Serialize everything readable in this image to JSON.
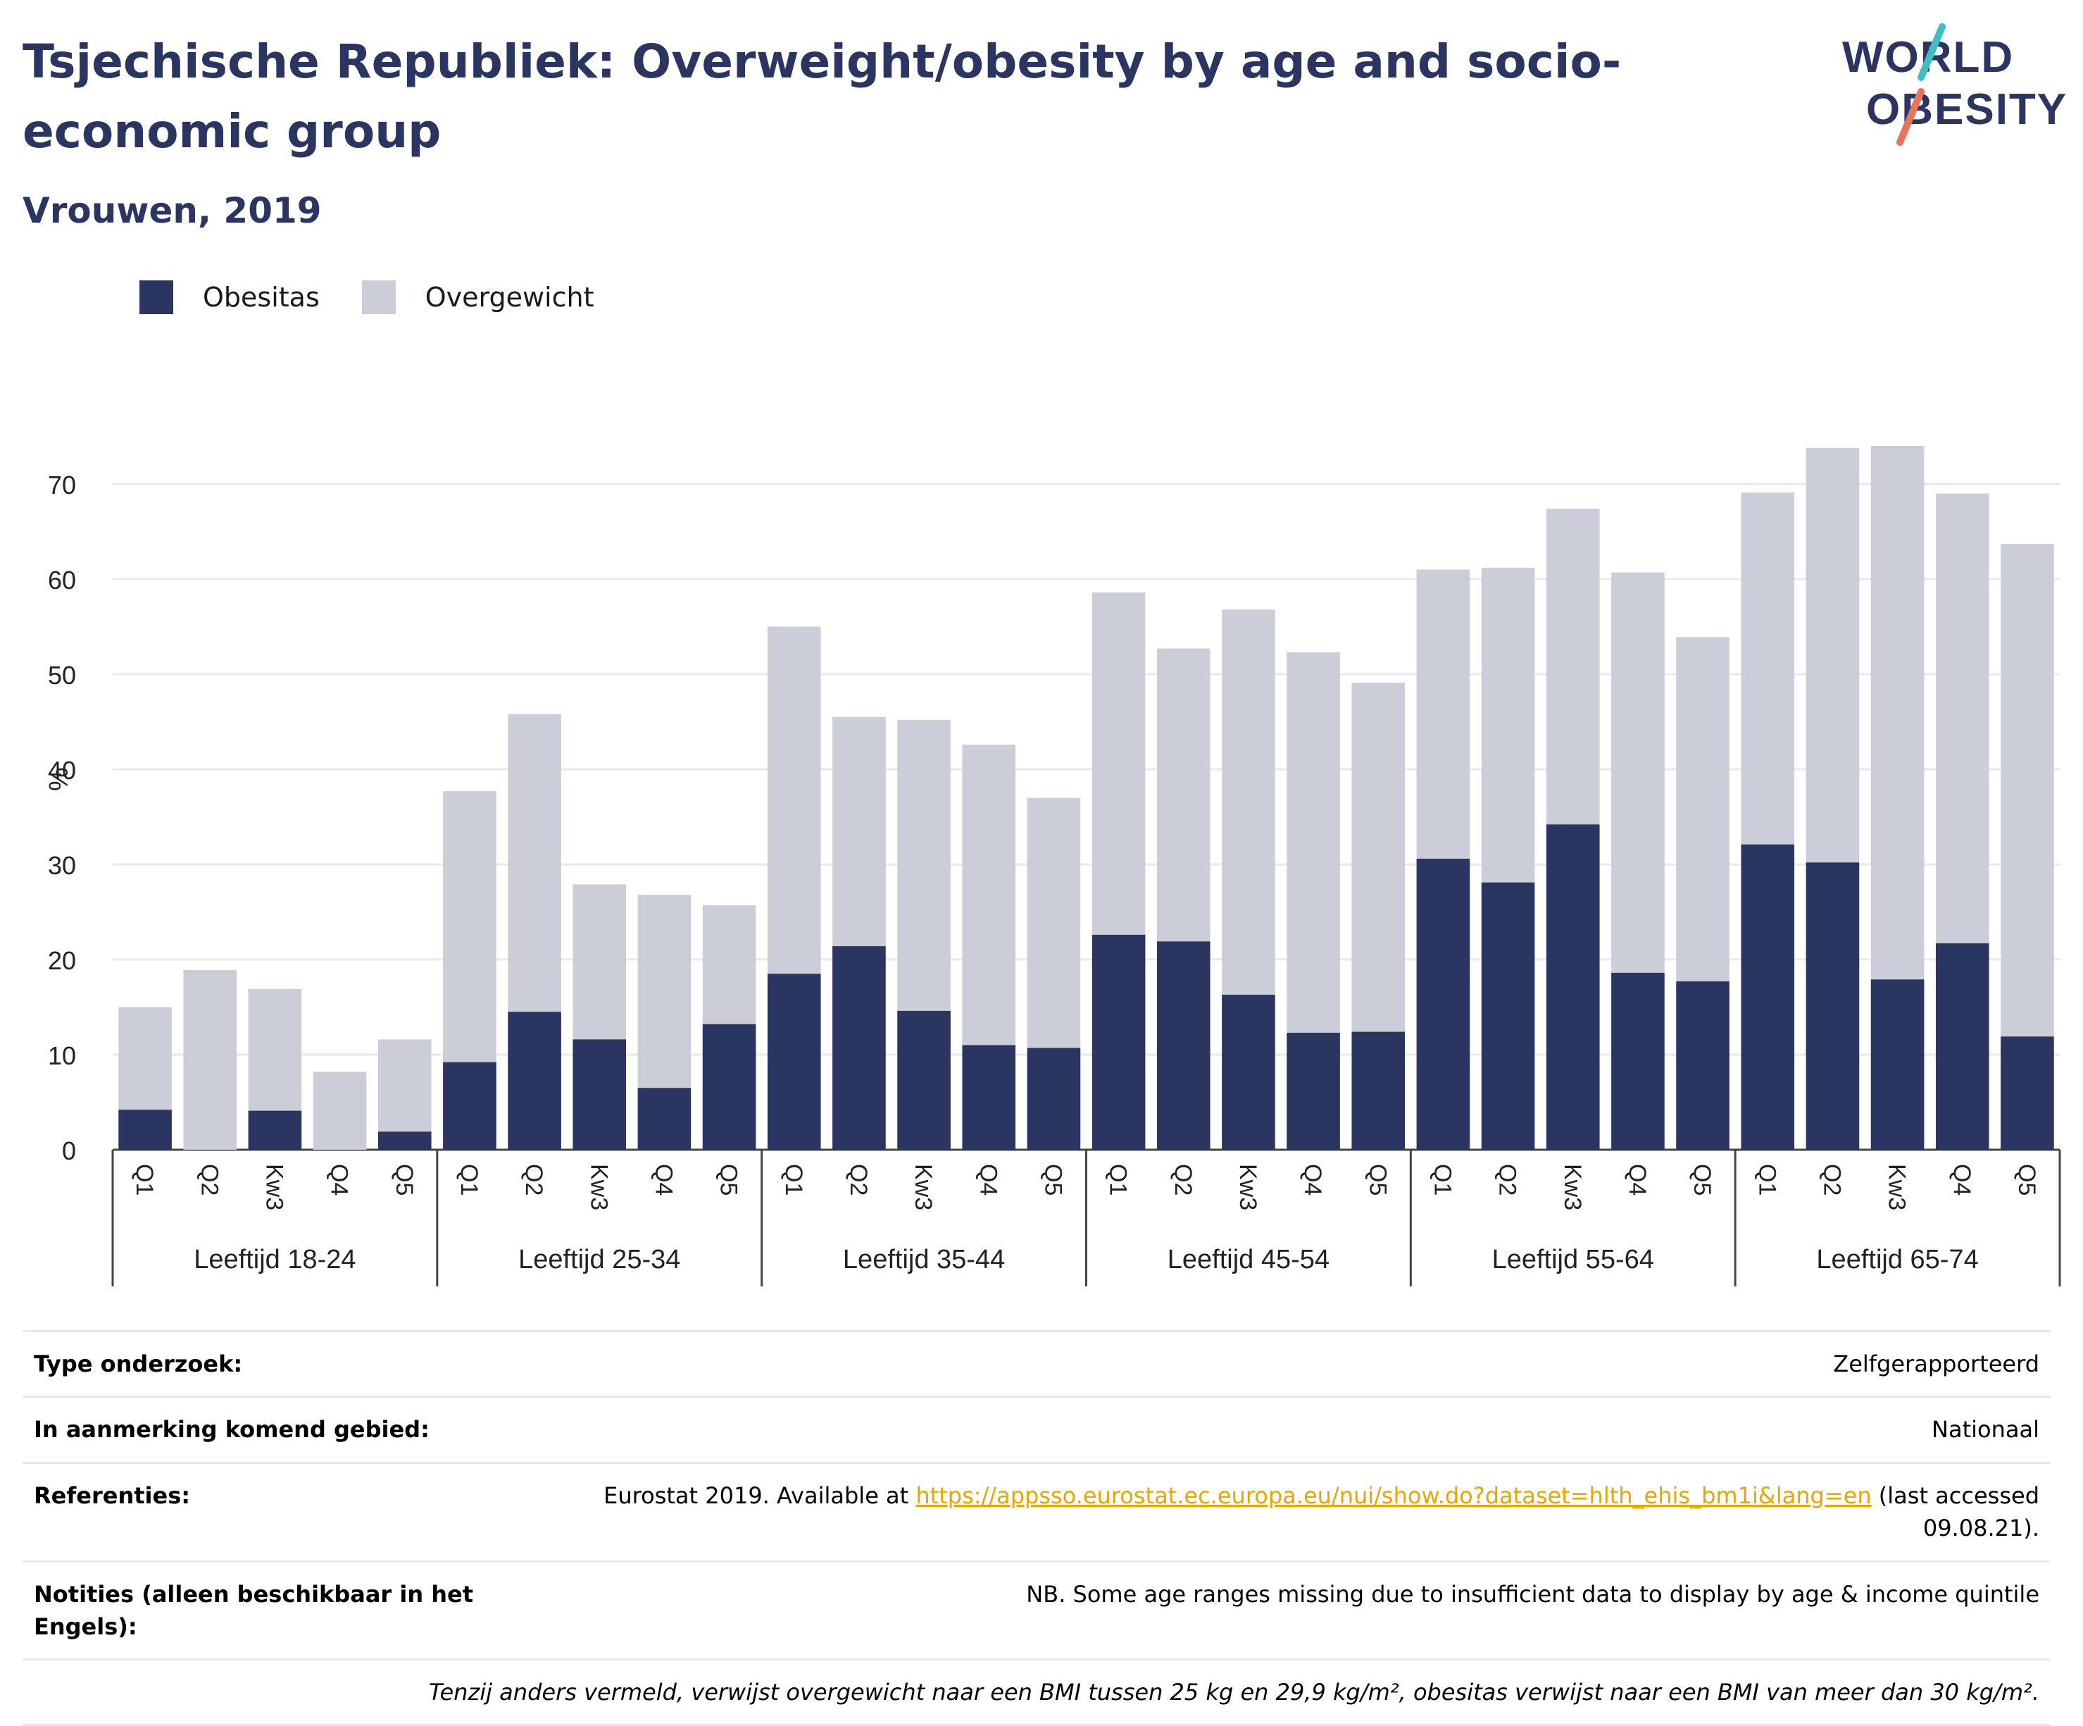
{
  "header": {
    "title": "Tsjechische Republiek: Overweight/obesity by age and socio-economic group",
    "subtitle": "Vrouwen, 2019",
    "logo_line1": "WORLD",
    "logo_line2": "OBESITY"
  },
  "colors": {
    "obesitas": "#2a3561",
    "overgewicht": "#cbcdd8",
    "accent": "#e8a600",
    "logo_teal": "#3fbfc1",
    "logo_coral": "#e8735f"
  },
  "chart_data": {
    "type": "bar",
    "stacked": true,
    "ylabel": "%",
    "xlabel": "",
    "ylim": [
      0,
      75
    ],
    "yticks": [
      0,
      10,
      20,
      30,
      40,
      50,
      60,
      70
    ],
    "grid": true,
    "legend_position": "top-left",
    "legend": [
      "Obesitas",
      "Overgewicht"
    ],
    "groups": [
      {
        "label": "Leeftijd 18-24",
        "categories": [
          "Q1",
          "Q2",
          "Kw3",
          "Q4",
          "Q5"
        ],
        "obesitas": [
          4.2,
          0,
          4.1,
          0,
          1.9
        ],
        "totaal": [
          15.0,
          18.9,
          16.9,
          8.2,
          11.6
        ]
      },
      {
        "label": "Leeftijd 25-34",
        "categories": [
          "Q1",
          "Q2",
          "Kw3",
          "Q4",
          "Q5"
        ],
        "obesitas": [
          9.2,
          14.5,
          11.6,
          6.5,
          13.2
        ],
        "totaal": [
          37.7,
          45.8,
          27.9,
          26.8,
          25.7
        ]
      },
      {
        "label": "Leeftijd 35-44",
        "categories": [
          "Q1",
          "Q2",
          "Kw3",
          "Q4",
          "Q5"
        ],
        "obesitas": [
          18.5,
          21.4,
          14.6,
          11.0,
          10.7
        ],
        "totaal": [
          55.0,
          45.5,
          45.2,
          42.6,
          37.0
        ]
      },
      {
        "label": "Leeftijd 45-54",
        "categories": [
          "Q1",
          "Q2",
          "Kw3",
          "Q4",
          "Q5"
        ],
        "obesitas": [
          22.6,
          21.9,
          16.3,
          12.3,
          12.4
        ],
        "totaal": [
          58.6,
          52.7,
          56.8,
          52.3,
          49.1
        ]
      },
      {
        "label": "Leeftijd 55-64",
        "categories": [
          "Q1",
          "Q2",
          "Kw3",
          "Q4",
          "Q5"
        ],
        "obesitas": [
          30.6,
          28.1,
          34.2,
          18.6,
          17.7
        ],
        "totaal": [
          61.0,
          61.2,
          67.4,
          60.7,
          53.9
        ]
      },
      {
        "label": "Leeftijd 65-74",
        "categories": [
          "Q1",
          "Q2",
          "Kw3",
          "Q4",
          "Q5"
        ],
        "obesitas": [
          32.1,
          30.2,
          17.9,
          21.7,
          11.9
        ],
        "totaal": [
          69.1,
          73.8,
          74.0,
          69.0,
          63.7
        ]
      }
    ]
  },
  "info": {
    "rows": [
      {
        "label": "Type onderzoek:",
        "value": "Zelfgerapporteerd"
      },
      {
        "label": "In aanmerking komend gebied:",
        "value": "Nationaal"
      }
    ],
    "ref_label": "Referenties:",
    "ref_prefix": "Eurostat 2019. Available at ",
    "ref_link": "https://appsso.eurostat.ec.europa.eu/nui/show.do?dataset=hlth_ehis_bm1i&lang=en",
    "ref_suffix": " (last accessed 09.08.21).",
    "notes_label": "Notities (alleen beschikbaar in het Engels):",
    "notes_value": "NB. Some age ranges missing due to insufficient data to display by age & income quintile",
    "footnote": "Tenzij anders vermeld, verwijst overgewicht naar een BMI tussen 25 kg en 29,9 kg/m², obesitas verwijst naar een BMI van meer dan 30 kg/m²."
  }
}
